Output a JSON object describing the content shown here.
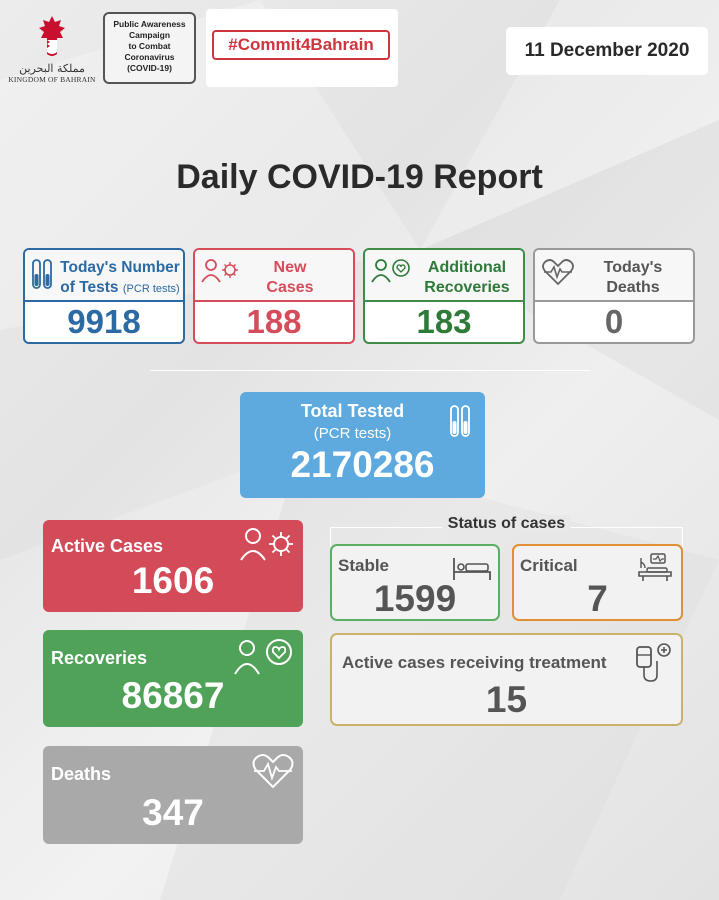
{
  "header": {
    "logo_arabic": "مملكة البحرين",
    "logo_english": "KINGDOM OF BAHRAIN",
    "campaign_lines": [
      "Public Awareness",
      "Campaign",
      "to Combat",
      "Coronavirus",
      "(COVID-19)"
    ],
    "hashtag": "#Commit4Bahrain",
    "date": "11 December 2020"
  },
  "title": "Daily COVID-19 Report",
  "daily": {
    "tests": {
      "label_line1": "Today's Number",
      "label_line2": "of Tests",
      "label_note": "(PCR tests)",
      "value": "9918",
      "icon": "test-tubes-icon"
    },
    "new_cases": {
      "label_line1": "New",
      "label_line2": "Cases",
      "value": "188",
      "icon": "person-virus-icon"
    },
    "recoveries": {
      "label_line1": "Additional",
      "label_line2": "Recoveries",
      "value": "183",
      "icon": "person-heart-icon"
    },
    "deaths": {
      "label_line1": "Today's",
      "label_line2": "Deaths",
      "value": "0",
      "icon": "heartbeat-icon"
    }
  },
  "total_tested": {
    "label": "Total Tested",
    "note": "(PCR tests)",
    "value": "2170286",
    "icon": "test-tubes-icon"
  },
  "totals": {
    "active": {
      "label": "Active Cases",
      "value": "1606",
      "icon": "person-virus-icon"
    },
    "recoveries": {
      "label": "Recoveries",
      "value": "86867",
      "icon": "person-heart-icon"
    },
    "deaths": {
      "label": "Deaths",
      "value": "347",
      "icon": "heartbeat-icon"
    }
  },
  "status": {
    "title": "Status of cases",
    "stable": {
      "label": "Stable",
      "value": "1599",
      "icon": "hospital-bed-icon"
    },
    "critical": {
      "label": "Critical",
      "value": "7",
      "icon": "icu-bed-icon"
    },
    "treatment": {
      "label": "Active cases receiving treatment",
      "value": "15",
      "icon": "iv-drip-icon"
    }
  },
  "colors": {
    "tests": "#2b6aa2",
    "new_cases": "#d54d5a",
    "recoveries": "#3e8c48",
    "deaths": "#999999",
    "total_tested_bg": "#5eaadf",
    "active_bg": "#d34b58",
    "recoveries_bg": "#4fa257",
    "deaths_bg": "#a9a9a9",
    "stable_border": "#5cae63",
    "critical_border": "#e08f33",
    "treatment_border": "#c8b26c",
    "hashtag": "#d0343f"
  }
}
